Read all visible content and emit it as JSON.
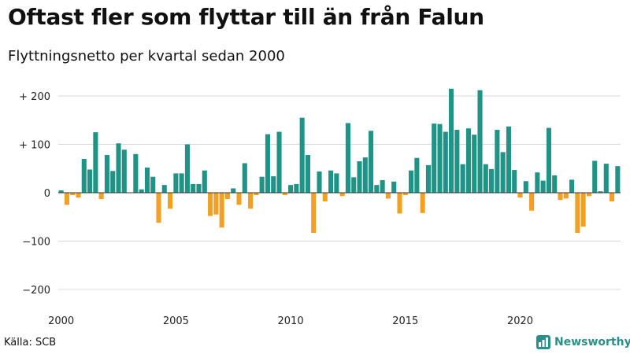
{
  "header": {
    "title": "Oftast fler som flyttar till än från Falun",
    "subtitle": "Flyttningsnetto per kvartal sedan 2000"
  },
  "footer": {
    "source": "Källa: SCB",
    "brand": "Newsworthy",
    "brand_icon": "newsworthy-logo-icon"
  },
  "colors": {
    "positive": "#1f9486",
    "negative": "#f2a023",
    "grid": "#d9d9d9",
    "zero_line": "#333333",
    "brand": "#2a8f88"
  },
  "chart_data": {
    "type": "bar",
    "title": "Oftast fler som flyttar till än från Falun",
    "subtitle": "Flyttningsnetto per kvartal sedan 2000",
    "xlabel": "",
    "ylabel": "",
    "ylim": [
      -200,
      220
    ],
    "yticks": [
      200,
      100,
      0,
      -100,
      -200
    ],
    "ytick_labels": [
      "+ 200",
      "+ 100",
      "0",
      "−100",
      "−200"
    ],
    "xticks": [
      {
        "label": "2000",
        "index": 0
      },
      {
        "label": "2005",
        "index": 20
      },
      {
        "label": "2010",
        "index": 40
      },
      {
        "label": "2015",
        "index": 60
      },
      {
        "label": "2020",
        "index": 80
      }
    ],
    "grid": true,
    "start": "2000 Q1",
    "values": [
      5,
      -25,
      -5,
      -10,
      70,
      48,
      125,
      -13,
      78,
      45,
      102,
      89,
      0,
      80,
      7,
      52,
      33,
      -62,
      16,
      -33,
      40,
      40,
      100,
      18,
      18,
      46,
      -48,
      -45,
      -72,
      -13,
      9,
      -25,
      61,
      -33,
      -5,
      33,
      121,
      34,
      126,
      -5,
      16,
      18,
      155,
      78,
      -83,
      44,
      -18,
      46,
      40,
      -7,
      144,
      32,
      65,
      73,
      128,
      16,
      26,
      -12,
      23,
      -43,
      -5,
      46,
      72,
      -42,
      57,
      143,
      142,
      126,
      215,
      130,
      59,
      133,
      120,
      212,
      59,
      49,
      130,
      84,
      137,
      47,
      -10,
      24,
      -37,
      42,
      25,
      134,
      36,
      -15,
      -12,
      27,
      -83,
      -70,
      -7,
      66,
      3,
      60,
      -18,
      55
    ]
  }
}
